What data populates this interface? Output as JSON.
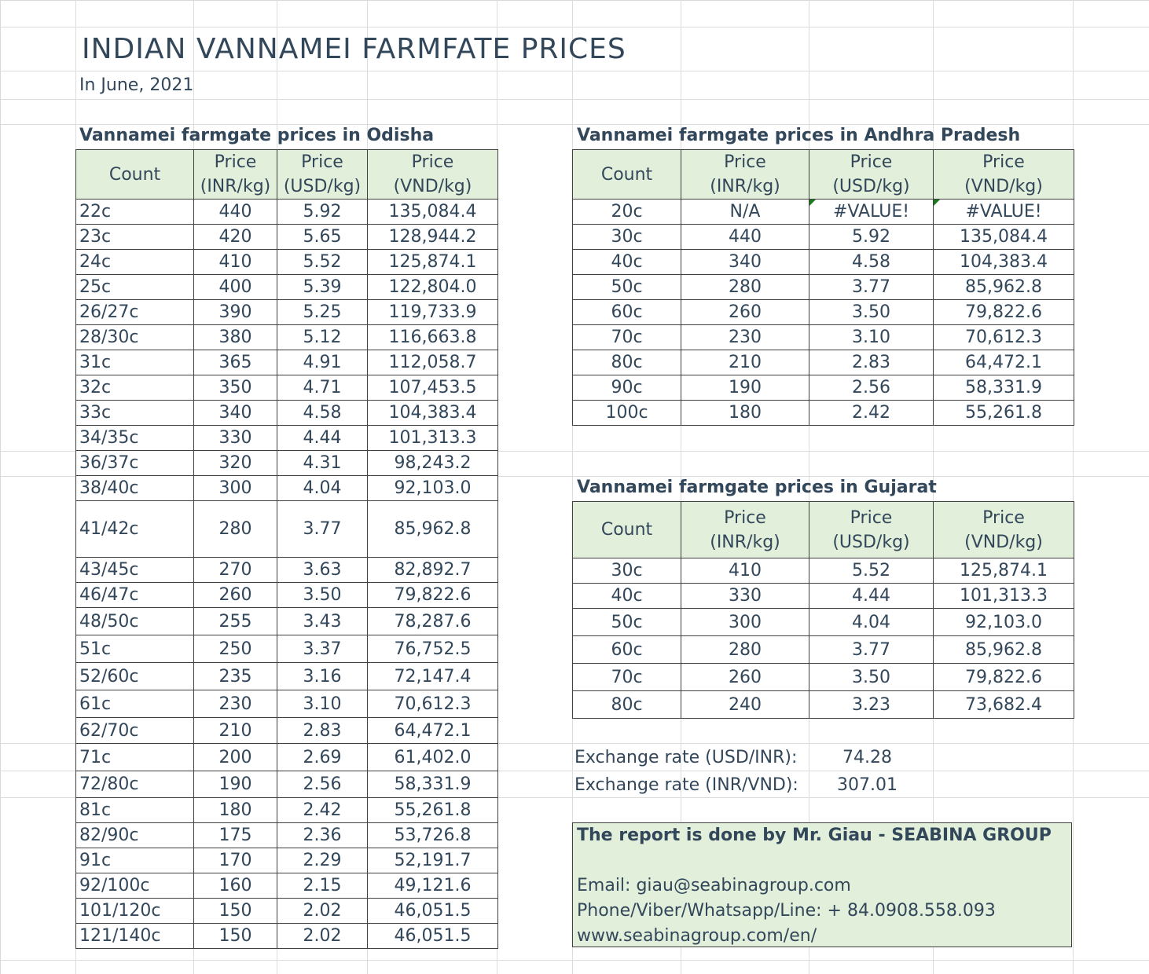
{
  "title": "INDIAN VANNAMEI FARMFATE  PRICES",
  "subtitle": "In June, 2021",
  "headers": {
    "count": "Count",
    "price": "Price",
    "inr": "(INR/kg)",
    "usd": "(USD/kg)",
    "vnd": "(VND/kg)"
  },
  "odisha": {
    "title": "Vannamei farmgate prices in Odisha",
    "rows": [
      [
        "22c",
        "440",
        "5.92",
        "135,084.4"
      ],
      [
        "23c",
        "420",
        "5.65",
        "128,944.2"
      ],
      [
        "24c",
        "410",
        "5.52",
        "125,874.1"
      ],
      [
        "25c",
        "400",
        "5.39",
        "122,804.0"
      ],
      [
        "26/27c",
        "390",
        "5.25",
        "119,733.9"
      ],
      [
        "28/30c",
        "380",
        "5.12",
        "116,663.8"
      ],
      [
        "31c",
        "365",
        "4.91",
        "112,058.7"
      ],
      [
        "32c",
        "350",
        "4.71",
        "107,453.5"
      ],
      [
        "33c",
        "340",
        "4.58",
        "104,383.4"
      ],
      [
        "34/35c",
        "330",
        "4.44",
        "101,313.3"
      ],
      [
        "36/37c",
        "320",
        "4.31",
        "98,243.2"
      ],
      [
        "38/40c",
        "300",
        "4.04",
        "92,103.0"
      ],
      [
        "41/42c",
        "280",
        "3.77",
        "85,962.8"
      ],
      [
        "43/45c",
        "270",
        "3.63",
        "82,892.7"
      ],
      [
        "46/47c",
        "260",
        "3.50",
        "79,822.6"
      ],
      [
        "48/50c",
        "255",
        "3.43",
        "78,287.6"
      ],
      [
        "51c",
        "250",
        "3.37",
        "76,752.5"
      ],
      [
        "52/60c",
        "235",
        "3.16",
        "72,147.4"
      ],
      [
        "61c",
        "230",
        "3.10",
        "70,612.3"
      ],
      [
        "62/70c",
        "210",
        "2.83",
        "64,472.1"
      ],
      [
        "71c",
        "200",
        "2.69",
        "61,402.0"
      ],
      [
        "72/80c",
        "190",
        "2.56",
        "58,331.9"
      ],
      [
        "81c",
        "180",
        "2.42",
        "55,261.8"
      ],
      [
        "82/90c",
        "175",
        "2.36",
        "53,726.8"
      ],
      [
        "91c",
        "170",
        "2.29",
        "52,191.7"
      ],
      [
        "92/100c",
        "160",
        "2.15",
        "49,121.6"
      ],
      [
        "101/120c",
        "150",
        "2.02",
        "46,051.5"
      ],
      [
        "121/140c",
        "150",
        "2.02",
        "46,051.5"
      ]
    ]
  },
  "andhra": {
    "title": "Vannamei farmgate prices in Andhra Pradesh",
    "rows": [
      [
        "20c",
        "N/A",
        "#VALUE!",
        "#VALUE!"
      ],
      [
        "30c",
        "440",
        "5.92",
        "135,084.4"
      ],
      [
        "40c",
        "340",
        "4.58",
        "104,383.4"
      ],
      [
        "50c",
        "280",
        "3.77",
        "85,962.8"
      ],
      [
        "60c",
        "260",
        "3.50",
        "79,822.6"
      ],
      [
        "70c",
        "230",
        "3.10",
        "70,612.3"
      ],
      [
        "80c",
        "210",
        "2.83",
        "64,472.1"
      ],
      [
        "90c",
        "190",
        "2.56",
        "58,331.9"
      ],
      [
        "100c",
        "180",
        "2.42",
        "55,261.8"
      ]
    ]
  },
  "gujarat": {
    "title": "Vannamei farmgate prices in Gujarat",
    "rows": [
      [
        "30c",
        "410",
        "5.52",
        "125,874.1"
      ],
      [
        "40c",
        "330",
        "4.44",
        "101,313.3"
      ],
      [
        "50c",
        "300",
        "4.04",
        "92,103.0"
      ],
      [
        "60c",
        "280",
        "3.77",
        "85,962.8"
      ],
      [
        "70c",
        "260",
        "3.50",
        "79,822.6"
      ],
      [
        "80c",
        "240",
        "3.23",
        "73,682.4"
      ]
    ]
  },
  "exchange": {
    "usd_inr_label": "Exchange rate (USD/INR):",
    "usd_inr_value": "74.28",
    "inr_vnd_label": "Exchange rate (INR/VND):",
    "inr_vnd_value": "307.01"
  },
  "report": {
    "head": "The report is done by Mr. Giau - SEABINA GROUP",
    "email": "Email: giau@seabinagroup.com",
    "phone": "Phone/Viber/Whatsapp/Line: + 84.0908.558.093",
    "web": "www.seabinagroup.com/en/"
  }
}
